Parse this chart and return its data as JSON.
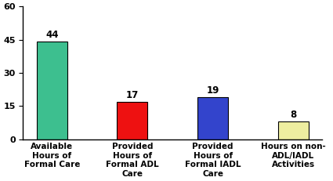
{
  "categories": [
    "Available\nHours of\nFormal Care",
    "Provided\nHours of\nFormal ADL\nCare",
    "Provided\nHours of\nFormal IADL\nCare",
    "Hours on non-\nADL/IADL\nActivities"
  ],
  "values": [
    44,
    17,
    19,
    8
  ],
  "bar_colors": [
    "#3dbf8f",
    "#ee1111",
    "#3344cc",
    "#eeeea0"
  ],
  "bar_edge_colors": [
    "#000000",
    "#000000",
    "#000000",
    "#000000"
  ],
  "ylim": [
    0,
    60
  ],
  "yticks": [
    0,
    15,
    30,
    45,
    60
  ],
  "value_labels": [
    "44",
    "17",
    "19",
    "8"
  ],
  "background_color": "#ffffff",
  "label_fontsize": 7.5,
  "value_fontsize": 8.5,
  "tick_fontsize": 8,
  "bar_width": 0.38
}
